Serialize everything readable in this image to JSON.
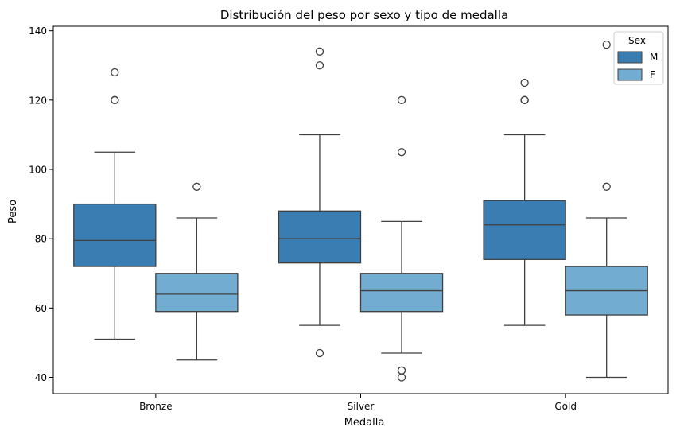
{
  "chart_data": {
    "type": "box",
    "title": "Distribución del peso por sexo y tipo de medalla",
    "xlabel": "Medalla",
    "ylabel": "Peso",
    "categories": [
      "Bronze",
      "Silver",
      "Gold"
    ],
    "ylim": [
      35.3,
      141.3
    ],
    "yticks": [
      40,
      60,
      80,
      100,
      120,
      140
    ],
    "legend": {
      "title": "Sex",
      "position": "top-right"
    },
    "series": [
      {
        "name": "M",
        "color": "#3a7db2",
        "boxes": [
          {
            "category": "Bronze",
            "whisker_low": 51,
            "q1": 72,
            "median": 79.5,
            "q3": 90,
            "whisker_high": 105,
            "outliers": [
              120,
              120,
              128
            ]
          },
          {
            "category": "Silver",
            "whisker_low": 55,
            "q1": 73,
            "median": 80,
            "q3": 88,
            "whisker_high": 110,
            "outliers": [
              47,
              130,
              134
            ]
          },
          {
            "category": "Gold",
            "whisker_low": 55,
            "q1": 74,
            "median": 84,
            "q3": 91,
            "whisker_high": 110,
            "outliers": [
              120,
              120,
              125
            ]
          }
        ]
      },
      {
        "name": "F",
        "color": "#73acd1",
        "boxes": [
          {
            "category": "Bronze",
            "whisker_low": 45,
            "q1": 59,
            "median": 64,
            "q3": 70,
            "whisker_high": 86,
            "outliers": [
              95
            ]
          },
          {
            "category": "Silver",
            "whisker_low": 47,
            "q1": 59,
            "median": 65,
            "q3": 70,
            "whisker_high": 85,
            "outliers": [
              40,
              42,
              105,
              120
            ]
          },
          {
            "category": "Gold",
            "whisker_low": 40,
            "q1": 58,
            "median": 65,
            "q3": 72,
            "whisker_high": 86,
            "outliers": [
              95,
              136
            ]
          }
        ]
      }
    ]
  }
}
